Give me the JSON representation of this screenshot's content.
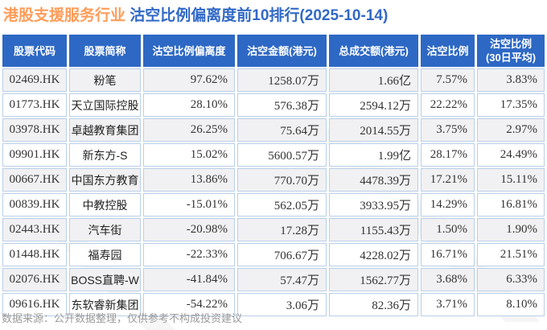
{
  "title": {
    "industry": "港股支援服务行业",
    "main": "沽空比例偏离度前10排行(2025-10-14)"
  },
  "chart_data": {
    "type": "table",
    "columns": [
      "股票代码",
      "股票简称",
      "沽空比例偏离度",
      "沽空金额(港元)",
      "总成交额(港元)",
      "沽空比例",
      "沽空比例\n(30日平均)"
    ],
    "rows": [
      {
        "code": "02469.HK",
        "name": "粉笔",
        "deviation": "97.62%",
        "short_amount": "1258.07万",
        "turnover": "1.66亿",
        "short_ratio": "7.57%",
        "short_ratio_30d": "3.83%"
      },
      {
        "code": "01773.HK",
        "name": "天立国际控股",
        "deviation": "28.10%",
        "short_amount": "576.38万",
        "turnover": "2594.12万",
        "short_ratio": "22.22%",
        "short_ratio_30d": "17.35%"
      },
      {
        "code": "03978.HK",
        "name": "卓越教育集团",
        "deviation": "26.25%",
        "short_amount": "75.64万",
        "turnover": "2014.55万",
        "short_ratio": "3.75%",
        "short_ratio_30d": "2.97%"
      },
      {
        "code": "09901.HK",
        "name": "新东方-S",
        "deviation": "15.02%",
        "short_amount": "5600.57万",
        "turnover": "1.99亿",
        "short_ratio": "28.17%",
        "short_ratio_30d": "24.49%"
      },
      {
        "code": "00667.HK",
        "name": "中国东方教育",
        "deviation": "13.86%",
        "short_amount": "770.70万",
        "turnover": "4478.39万",
        "short_ratio": "17.21%",
        "short_ratio_30d": "15.11%"
      },
      {
        "code": "00839.HK",
        "name": "中教控股",
        "deviation": "-15.01%",
        "short_amount": "562.05万",
        "turnover": "3933.95万",
        "short_ratio": "14.29%",
        "short_ratio_30d": "16.81%"
      },
      {
        "code": "02443.HK",
        "name": "汽车街",
        "deviation": "-20.98%",
        "short_amount": "17.28万",
        "turnover": "1155.43万",
        "short_ratio": "1.50%",
        "short_ratio_30d": "1.90%"
      },
      {
        "code": "01448.HK",
        "name": "福寿园",
        "deviation": "-22.33%",
        "short_amount": "706.67万",
        "turnover": "4228.02万",
        "short_ratio": "16.71%",
        "short_ratio_30d": "21.51%"
      },
      {
        "code": "02076.HK",
        "name": "BOSS直聘-W",
        "deviation": "-41.84%",
        "short_amount": "57.47万",
        "turnover": "1562.77万",
        "short_ratio": "3.68%",
        "short_ratio_30d": "6.33%"
      },
      {
        "code": "09616.HK",
        "name": "东软睿新集团",
        "deviation": "-54.22%",
        "short_amount": "3.06万",
        "turnover": "82.36万",
        "short_ratio": "3.71%",
        "short_ratio_30d": "8.10%"
      }
    ]
  },
  "footer": {
    "note": "数据来源：公开数据整理，仅供参考不构成投资建议"
  },
  "colors": {
    "header_bg": "#2d68c4",
    "cell_border": "#b9cfe8",
    "row_alt_bg": "#f1f1f3",
    "title_industry": "#ff9c59",
    "title_main": "#3169c6",
    "footer_text": "#9a9a9a"
  }
}
